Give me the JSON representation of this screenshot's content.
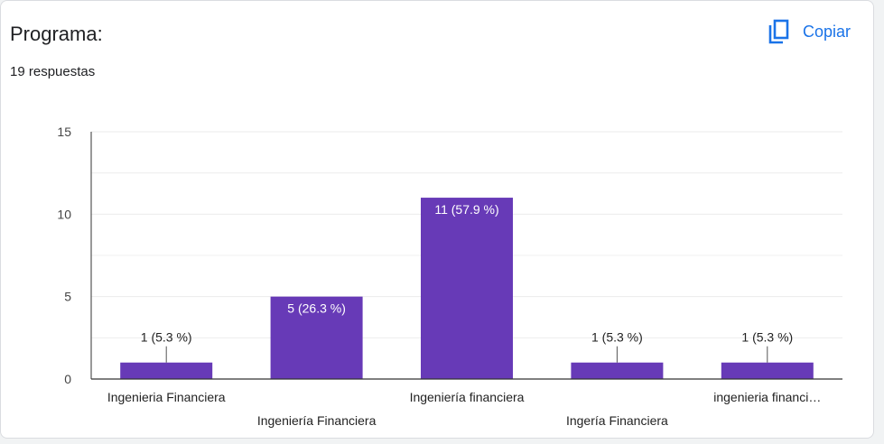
{
  "question": {
    "title": "Programa:",
    "responses": "19 respuestas"
  },
  "actions": {
    "copy_label": "Copiar",
    "copy_icon": "copy-icon"
  },
  "colors": {
    "bar": "#673ab7",
    "accent": "#1a73e8",
    "grid": "#ebebeb",
    "axis": "#333333"
  },
  "chart_data": {
    "type": "bar",
    "categories": [
      "Ingenieria Financiera",
      "Ingeniería Financiera",
      "Ingeniería financiera",
      "Ingería Financiera",
      "ingenieria financi…"
    ],
    "values": [
      1,
      5,
      11,
      1,
      1
    ],
    "data_labels": [
      "1 (5.3 %)",
      "5 (26.3 %)",
      "11 (57.9 %)",
      "1 (5.3 %)",
      "1 (5.3 %)"
    ],
    "yticks": [
      0,
      5,
      10,
      15
    ],
    "ylim": [
      0,
      15
    ],
    "grid": true,
    "title": "",
    "xlabel": "",
    "ylabel": ""
  }
}
